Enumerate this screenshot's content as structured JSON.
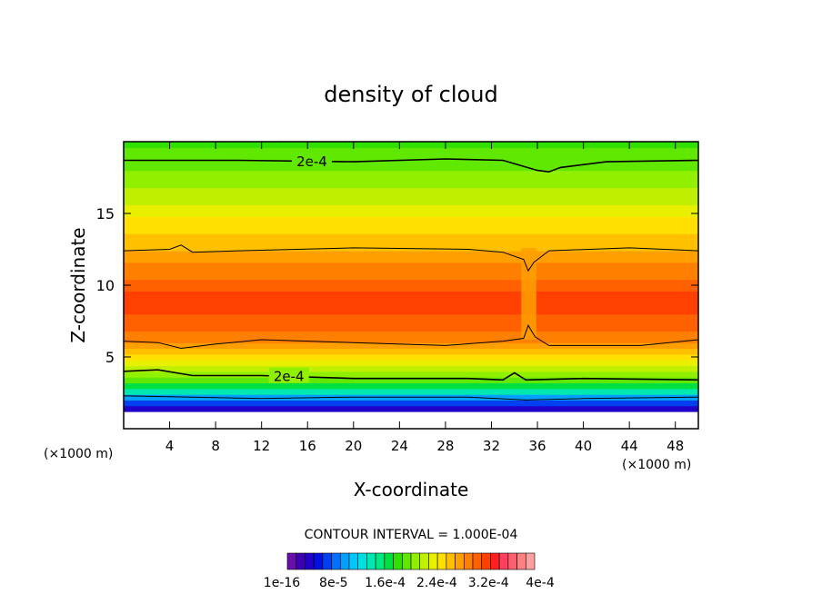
{
  "chart_data": {
    "type": "heatmap",
    "title": "density of cloud",
    "xlabel": "X-coordinate",
    "ylabel": "Z-coordinate",
    "x_unit": "(×1000 m)",
    "y_unit": "(×1000 m)",
    "xlim": [
      0,
      50
    ],
    "ylim": [
      0,
      20
    ],
    "x_ticks": [
      4,
      8,
      12,
      16,
      20,
      24,
      28,
      32,
      36,
      40,
      44,
      48
    ],
    "y_ticks": [
      5,
      10,
      15
    ],
    "contour_interval_label": "CONTOUR INTERVAL = 1.000E-04",
    "contour_levels": [
      {
        "label": "2e-4",
        "z_profile": [
          [
            0,
            18.7
          ],
          [
            10,
            18.7
          ],
          [
            20,
            18.6
          ],
          [
            28,
            18.8
          ],
          [
            33,
            18.7
          ],
          [
            36,
            18.0
          ],
          [
            37,
            17.9
          ],
          [
            38,
            18.2
          ],
          [
            42,
            18.6
          ],
          [
            50,
            18.7
          ]
        ]
      },
      {
        "label": "",
        "z_profile": [
          [
            0,
            12.4
          ],
          [
            4,
            12.5
          ],
          [
            5,
            12.8
          ],
          [
            6,
            12.3
          ],
          [
            10,
            12.4
          ],
          [
            20,
            12.6
          ],
          [
            30,
            12.5
          ],
          [
            33,
            12.3
          ],
          [
            34.8,
            11.8
          ],
          [
            35.2,
            11.0
          ],
          [
            35.7,
            11.6
          ],
          [
            37,
            12.4
          ],
          [
            44,
            12.6
          ],
          [
            50,
            12.4
          ]
        ]
      },
      {
        "label": "",
        "z_profile": [
          [
            0,
            6.1
          ],
          [
            3,
            6.0
          ],
          [
            5,
            5.6
          ],
          [
            8,
            5.9
          ],
          [
            12,
            6.2
          ],
          [
            20,
            6.0
          ],
          [
            28,
            5.8
          ],
          [
            33,
            6.1
          ],
          [
            34.8,
            6.3
          ],
          [
            35.2,
            7.2
          ],
          [
            35.8,
            6.4
          ],
          [
            37,
            5.8
          ],
          [
            45,
            5.8
          ],
          [
            50,
            6.2
          ]
        ]
      },
      {
        "label": "2e-4",
        "z_profile": [
          [
            0,
            4.0
          ],
          [
            3,
            4.1
          ],
          [
            6,
            3.7
          ],
          [
            12,
            3.7
          ],
          [
            20,
            3.5
          ],
          [
            30,
            3.5
          ],
          [
            33,
            3.4
          ],
          [
            34,
            3.9
          ],
          [
            35,
            3.4
          ],
          [
            40,
            3.5
          ],
          [
            50,
            3.4
          ]
        ]
      },
      {
        "label": "",
        "z_profile": [
          [
            0,
            2.3
          ],
          [
            6,
            2.2
          ],
          [
            12,
            2.1
          ],
          [
            20,
            2.2
          ],
          [
            30,
            2.2
          ],
          [
            35,
            2.0
          ],
          [
            40,
            2.1
          ],
          [
            50,
            2.2
          ]
        ]
      }
    ],
    "colorbar_labels": [
      "1e-16",
      "8e-5",
      "1.6e-4",
      "2.4e-4",
      "3.2e-4",
      "4e-4"
    ],
    "colorbar_colors": [
      "#6a0dad",
      "#3d00b0",
      "#2000c8",
      "#0010e0",
      "#0040f0",
      "#0070ff",
      "#00a0ff",
      "#00c8ff",
      "#00e0e0",
      "#00e8b0",
      "#00e880",
      "#00e040",
      "#30e000",
      "#60e800",
      "#90f000",
      "#c0f000",
      "#e8f000",
      "#ffe000",
      "#ffc000",
      "#ffa000",
      "#ff8000",
      "#ff6000",
      "#ff4000",
      "#ff2020",
      "#ff4060",
      "#ff6070",
      "#ff8080",
      "#ffa0a0"
    ],
    "value_profile_by_height": [
      {
        "z": 0.5,
        "value": 0.0
      },
      {
        "z": 1.5,
        "value": 3e-05
      },
      {
        "z": 2.5,
        "value": 0.00012
      },
      {
        "z": 3.5,
        "value": 0.0002
      },
      {
        "z": 5.0,
        "value": 0.00025
      },
      {
        "z": 6.5,
        "value": 0.0003
      },
      {
        "z": 9.0,
        "value": 0.00033
      },
      {
        "z": 12.0,
        "value": 0.00028
      },
      {
        "z": 15.0,
        "value": 0.00024
      },
      {
        "z": 18.0,
        "value": 0.0002
      },
      {
        "z": 20.0,
        "value": 0.00018
      }
    ]
  }
}
